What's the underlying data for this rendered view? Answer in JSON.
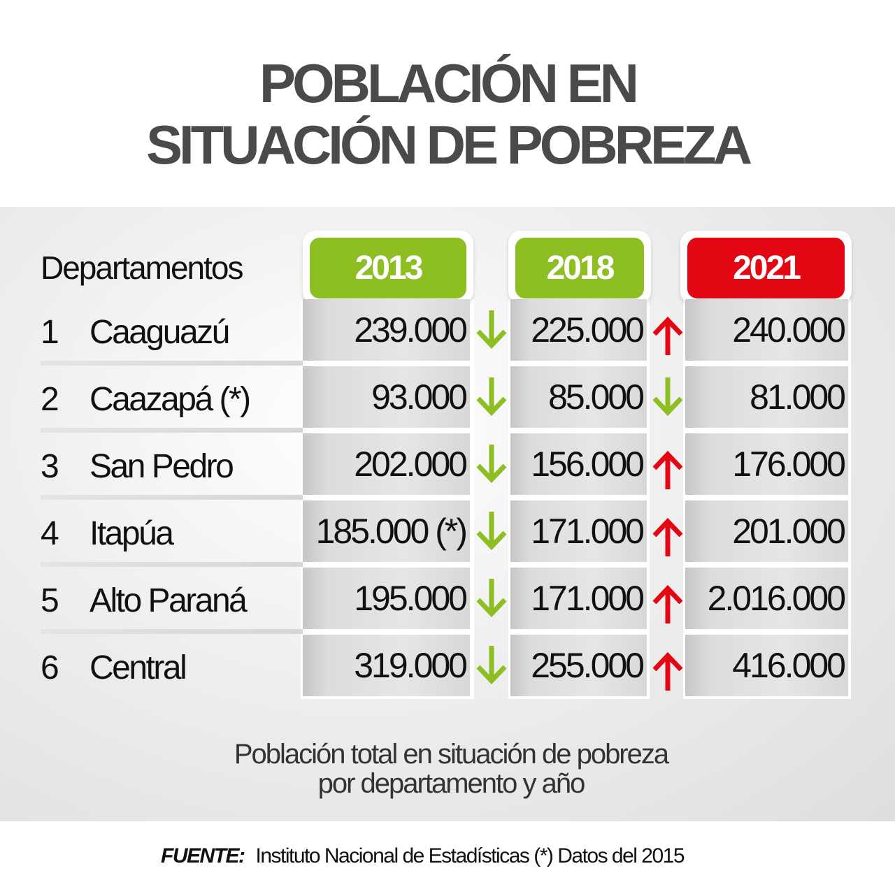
{
  "title": {
    "line1": "POBLACIÓN EN",
    "line2": "SITUACIÓN DE POBREZA"
  },
  "colors": {
    "green": "#8dbe22",
    "red": "#e30613",
    "text": "#111111",
    "title": "#4a4a4a"
  },
  "chart_data": {
    "type": "table",
    "row_header": "Departamentos",
    "columns": [
      "2013",
      "2018",
      "2021"
    ],
    "rows": [
      {
        "rank": "1",
        "name": "Caaguazú",
        "values": [
          "239.000",
          "225.000",
          "240.000"
        ],
        "changes": [
          "down",
          "up"
        ]
      },
      {
        "rank": "2",
        "name": "Caazapá (*)",
        "values": [
          "93.000",
          "85.000",
          "81.000"
        ],
        "changes": [
          "down",
          "down"
        ]
      },
      {
        "rank": "3",
        "name": "San Pedro",
        "values": [
          "202.000",
          "156.000",
          "176.000"
        ],
        "changes": [
          "down",
          "up"
        ]
      },
      {
        "rank": "4",
        "name": "Itapúa",
        "values": [
          "185.000 (*)",
          "171.000",
          "201.000"
        ],
        "changes": [
          "down",
          "up"
        ]
      },
      {
        "rank": "5",
        "name": "Alto Paraná",
        "values": [
          "195.000",
          "171.000",
          "2.016.000"
        ],
        "changes": [
          "down",
          "up"
        ]
      },
      {
        "rank": "6",
        "name": "Central",
        "values": [
          "319.000",
          "255.000",
          "416.000"
        ],
        "changes": [
          "down",
          "up"
        ]
      }
    ]
  },
  "caption": {
    "line1": "Población total en situación de pobreza",
    "line2": "por departamento y año"
  },
  "source": {
    "label": "FUENTE:",
    "text": "Instituto Nacional de Estadísticas  (*) Datos del 2015"
  }
}
